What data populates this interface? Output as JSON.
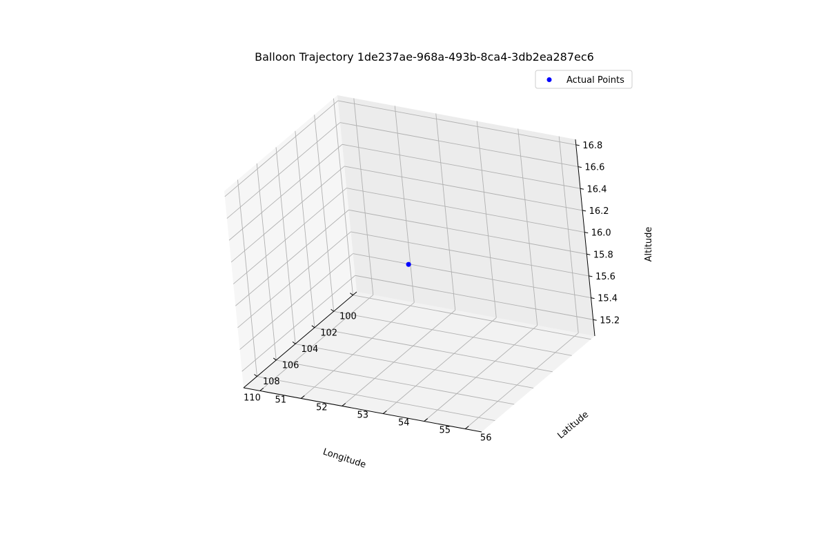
{
  "chart_data": {
    "type": "scatter",
    "projection": "3d",
    "title": "Balloon Trajectory 1de237ae-968a-493b-8ca4-3db2ea287ec6",
    "xlabel": "Longitude",
    "ylabel": "Latitude",
    "zlabel": "Altitude",
    "xlim": [
      99.6,
      111.4
    ],
    "ylim": [
      50.6,
      56.4
    ],
    "zlim": [
      15.05,
      16.85
    ],
    "xticks": [
      "100",
      "102",
      "104",
      "106",
      "108",
      "110"
    ],
    "yticks": [
      "51",
      "52",
      "53",
      "54",
      "55",
      "56"
    ],
    "zticks": [
      "15.2",
      "15.4",
      "15.6",
      "15.8",
      "16.0",
      "16.2",
      "16.4",
      "16.6",
      "16.8"
    ],
    "grid": true,
    "legend_position": "top-right",
    "series": [
      {
        "name": "Actual Points",
        "color": "#0000ff",
        "points": [
          {
            "x": 105.6,
            "y": 53.5,
            "z": 15.95
          }
        ]
      }
    ]
  }
}
